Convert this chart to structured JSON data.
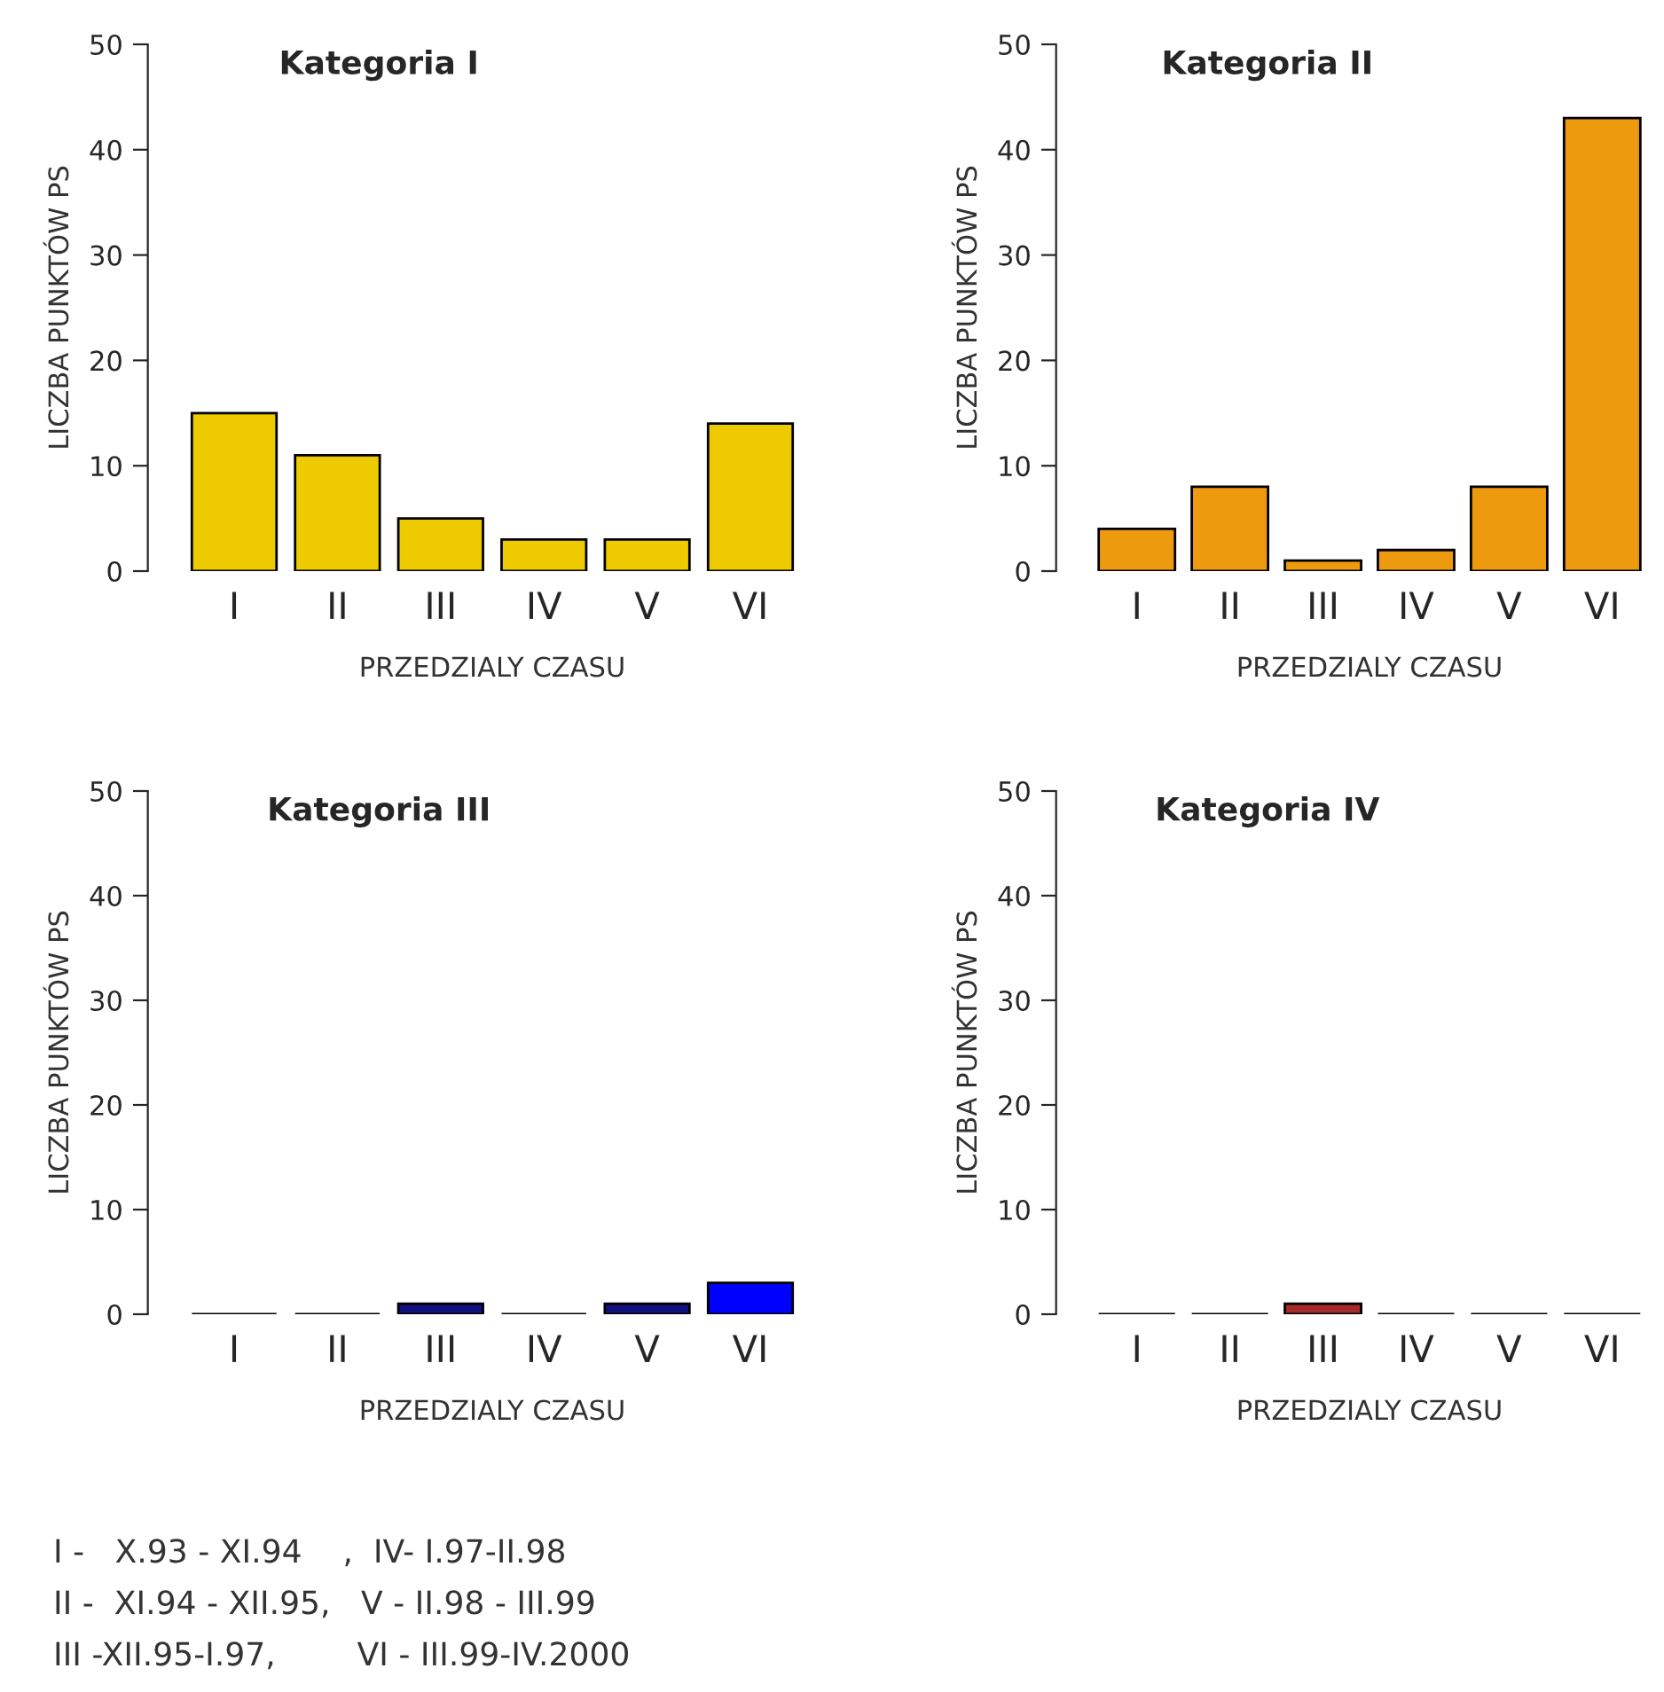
{
  "chart_data": [
    {
      "type": "bar",
      "title": "Kategoria I",
      "xlabel": "PRZEDZIALY CZASU",
      "ylabel": "LICZBA PUNKTÓW PS",
      "categories": [
        "I",
        "II",
        "III",
        "IV",
        "V",
        "VI"
      ],
      "values": [
        15,
        11,
        5,
        3,
        3,
        14
      ],
      "colors": [
        "#eecb00",
        "#eecb00",
        "#eecb00",
        "#eecb00",
        "#eecb00",
        "#eecb00"
      ],
      "ylim": [
        0,
        50
      ],
      "yticks": [
        0,
        10,
        20,
        30,
        40,
        50
      ],
      "grid": false,
      "legend": false
    },
    {
      "type": "bar",
      "title": "Kategoria II",
      "xlabel": "PRZEDZIALY CZASU",
      "ylabel": "LICZBA PUNKTÓW PS",
      "categories": [
        "I",
        "II",
        "III",
        "IV",
        "V",
        "VI"
      ],
      "values": [
        4,
        8,
        1,
        2,
        8,
        43
      ],
      "colors": [
        "#ee9a0f",
        "#ee9a0f",
        "#ee9a0f",
        "#ee9a0f",
        "#ee9a0f",
        "#ee9a0f"
      ],
      "ylim": [
        0,
        50
      ],
      "yticks": [
        0,
        10,
        20,
        30,
        40,
        50
      ],
      "grid": false,
      "legend": false
    },
    {
      "type": "bar",
      "title": "Kategoria III",
      "xlabel": "PRZEDZIALY CZASU",
      "ylabel": "LICZBA PUNKTÓW PS",
      "categories": [
        "I",
        "II",
        "III",
        "IV",
        "V",
        "VI"
      ],
      "values": [
        0,
        0,
        1,
        0,
        1,
        3
      ],
      "colors": [
        "#000000",
        "#000000",
        "#10107f",
        "#000000",
        "#10107f",
        "#0000ff"
      ],
      "ylim": [
        0,
        50
      ],
      "yticks": [
        0,
        10,
        20,
        30,
        40,
        50
      ],
      "grid": false,
      "legend": false,
      "annotations": [
        "I -   X.93 - XI.94    ,  IV- I.97-II.98",
        "II -  XI.94 - XII.95,   V - II.98 - III.99",
        "III -XII.95-I.97,        VI - III.99-IV.2000"
      ]
    },
    {
      "type": "bar",
      "title": "Kategoria IV",
      "xlabel": "PRZEDZIALY CZASU",
      "ylabel": "LICZBA PUNKTÓW PS",
      "categories": [
        "I",
        "II",
        "III",
        "IV",
        "V",
        "VI"
      ],
      "values": [
        0,
        0,
        1,
        0,
        0,
        0
      ],
      "colors": [
        "#000000",
        "#000000",
        "#a52a2a",
        "#000000",
        "#000000",
        "#000000"
      ],
      "ylim": [
        0,
        50
      ],
      "yticks": [
        0,
        10,
        20,
        30,
        40,
        50
      ],
      "grid": false,
      "legend": false
    }
  ]
}
